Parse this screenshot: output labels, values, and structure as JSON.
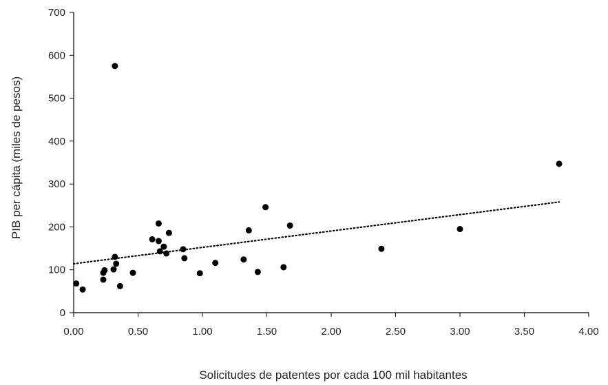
{
  "chart_data": {
    "type": "scatter",
    "title": "",
    "xlabel": "Solicitudes de patentes por cada 100 mil habitantes",
    "ylabel": "PIB per cápita (miles de pesos)",
    "xlim": [
      0,
      4
    ],
    "ylim": [
      0,
      700
    ],
    "x_ticks": [
      0,
      0.5,
      1.0,
      1.5,
      2.0,
      2.5,
      3.0,
      3.5,
      4.0
    ],
    "x_tick_labels": [
      "0.00",
      "0.50",
      "1.00",
      "1.50",
      "2.00",
      "2.50",
      "3.00",
      "3.50",
      "4.00"
    ],
    "y_ticks": [
      0,
      100,
      200,
      300,
      400,
      500,
      600,
      700
    ],
    "y_tick_labels": [
      "0",
      "100",
      "200",
      "300",
      "400",
      "500",
      "600",
      "700"
    ],
    "points": [
      {
        "x": 0.02,
        "y": 68
      },
      {
        "x": 0.07,
        "y": 54
      },
      {
        "x": 0.23,
        "y": 77
      },
      {
        "x": 0.23,
        "y": 93
      },
      {
        "x": 0.24,
        "y": 99
      },
      {
        "x": 0.31,
        "y": 101
      },
      {
        "x": 0.32,
        "y": 130
      },
      {
        "x": 0.33,
        "y": 114
      },
      {
        "x": 0.36,
        "y": 62
      },
      {
        "x": 0.32,
        "y": 575
      },
      {
        "x": 0.46,
        "y": 93
      },
      {
        "x": 0.61,
        "y": 171
      },
      {
        "x": 0.66,
        "y": 208
      },
      {
        "x": 0.66,
        "y": 167
      },
      {
        "x": 0.67,
        "y": 143
      },
      {
        "x": 0.7,
        "y": 154
      },
      {
        "x": 0.72,
        "y": 138
      },
      {
        "x": 0.74,
        "y": 186
      },
      {
        "x": 0.85,
        "y": 148
      },
      {
        "x": 0.86,
        "y": 127
      },
      {
        "x": 0.98,
        "y": 92
      },
      {
        "x": 1.1,
        "y": 116
      },
      {
        "x": 1.32,
        "y": 124
      },
      {
        "x": 1.36,
        "y": 192
      },
      {
        "x": 1.43,
        "y": 95
      },
      {
        "x": 1.49,
        "y": 246
      },
      {
        "x": 1.63,
        "y": 106
      },
      {
        "x": 1.68,
        "y": 203
      },
      {
        "x": 2.39,
        "y": 149
      },
      {
        "x": 3.0,
        "y": 195
      },
      {
        "x": 3.77,
        "y": 347
      }
    ],
    "trendline": {
      "style": "dotted",
      "x": [
        0,
        3.77
      ],
      "y": [
        114,
        258
      ]
    },
    "grid": false,
    "legend": "none"
  }
}
